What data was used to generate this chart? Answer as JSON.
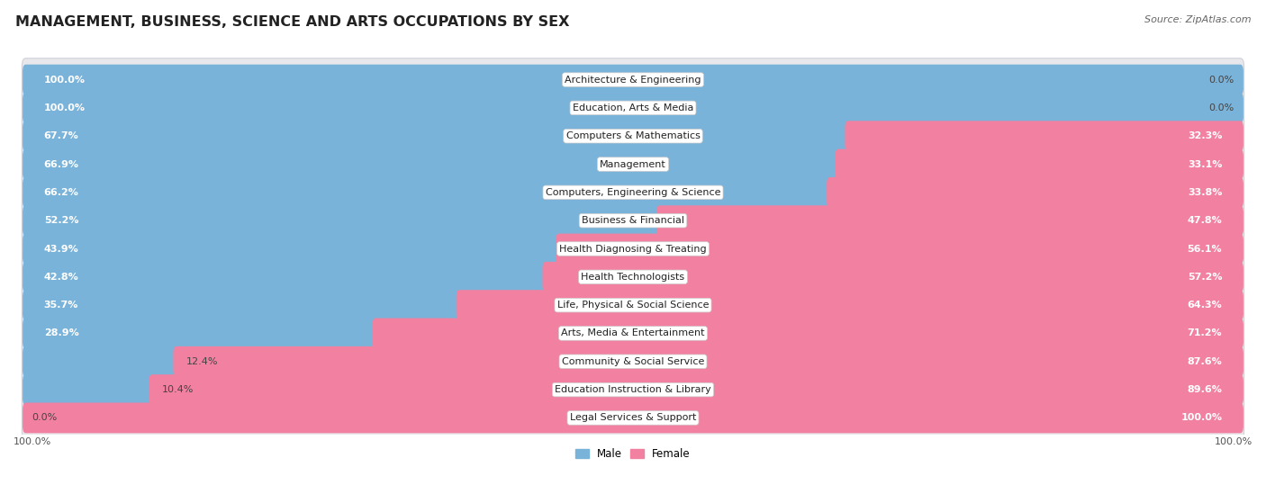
{
  "title": "MANAGEMENT, BUSINESS, SCIENCE AND ARTS OCCUPATIONS BY SEX",
  "source": "Source: ZipAtlas.com",
  "categories": [
    "Architecture & Engineering",
    "Education, Arts & Media",
    "Computers & Mathematics",
    "Management",
    "Computers, Engineering & Science",
    "Business & Financial",
    "Health Diagnosing & Treating",
    "Health Technologists",
    "Life, Physical & Social Science",
    "Arts, Media & Entertainment",
    "Community & Social Service",
    "Education Instruction & Library",
    "Legal Services & Support"
  ],
  "male_pct": [
    100.0,
    100.0,
    67.7,
    66.9,
    66.2,
    52.2,
    43.9,
    42.8,
    35.7,
    28.9,
    12.4,
    10.4,
    0.0
  ],
  "female_pct": [
    0.0,
    0.0,
    32.3,
    33.1,
    33.8,
    47.8,
    56.1,
    57.2,
    64.3,
    71.2,
    87.6,
    89.6,
    100.0
  ],
  "male_color": "#7ab3d9",
  "female_color": "#f280a1",
  "row_bg_color": "#e8e8ec",
  "title_fontsize": 11.5,
  "label_fontsize": 8.0,
  "tick_fontsize": 8.0,
  "source_fontsize": 8.0,
  "male_threshold": 15.0,
  "female_threshold": 15.0
}
